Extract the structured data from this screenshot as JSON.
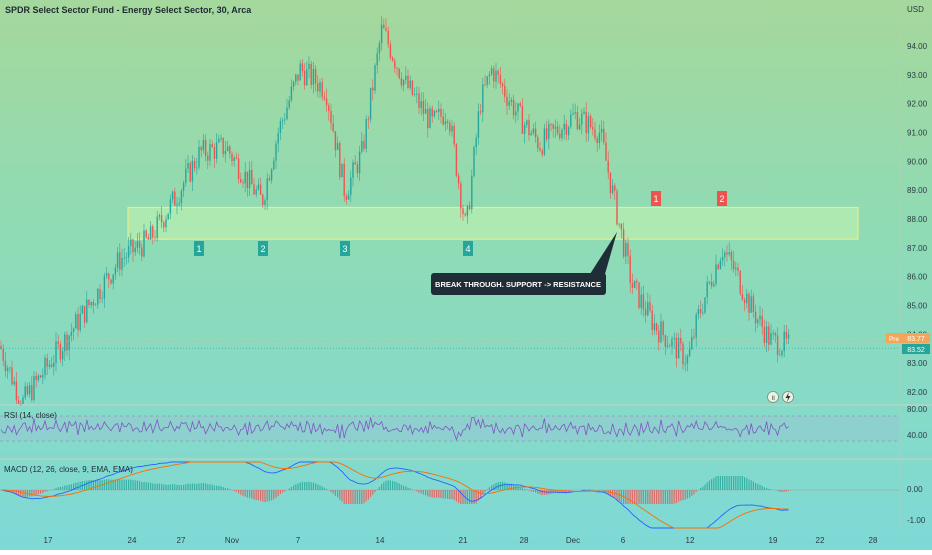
{
  "window": {
    "title": "SPDR Select Sector Fund - Energy Select Sector, 30, Arca",
    "currency": "USD"
  },
  "colors": {
    "up": "#26a69a",
    "down": "#ef5350",
    "zone_fill": "#b7eeb0",
    "zone_stroke": "#e7ee8a",
    "support_label": "#26a69a",
    "resistance_label": "#ef5350",
    "rsi_line": "#7e57c2",
    "macd_line": "#2962ff",
    "signal_line": "#ff6d00"
  },
  "annotations": {
    "support_labels": [
      "1",
      "2",
      "3",
      "4"
    ],
    "resistance_labels": [
      "1",
      "2"
    ],
    "callout": "BREAK THROUGH. SUPPORT -> RESISTANCE"
  },
  "price_badges": {
    "last": "83.77",
    "last_prefix": "Pre",
    "prev": "83.52"
  },
  "icons": [
    "pause-icon",
    "lightning-icon"
  ],
  "panes": {
    "rsi_label": "RSI (14, close)",
    "macd_label": "MACD (12, 26, close, 9, EMA, EMA)"
  },
  "chart_data": {
    "type": "candlestick",
    "title": "SPDR Select Sector Fund - Energy Select Sector, 30, Arca",
    "x_ticks": [
      "17",
      "24",
      "27",
      "Nov",
      "7",
      "14",
      "21",
      "28",
      "Dec",
      "6",
      "12",
      "19",
      "22",
      "28"
    ],
    "y_ticks": [
      "94.00",
      "93.00",
      "92.00",
      "91.00",
      "90.00",
      "89.00",
      "88.00",
      "87.00",
      "86.00",
      "85.00",
      "84.00",
      "83.00",
      "82.00"
    ],
    "ylim": [
      81.5,
      94.8
    ],
    "rsi_ticks": [
      "80.00",
      "40.00"
    ],
    "macd_ticks": [
      "0.00",
      "-1.00"
    ],
    "support_resistance_zone": [
      87.3,
      88.4
    ],
    "trend_points": [
      [
        "17",
        83.6
      ],
      [
        "19",
        81.6
      ],
      [
        "23",
        86.6
      ],
      [
        "24",
        87.3
      ],
      [
        "27",
        88.9
      ],
      [
        "29",
        90.3
      ],
      [
        "31",
        90.5
      ],
      [
        "Nov 2",
        88.6
      ],
      [
        "Nov 4",
        91.0
      ],
      [
        "Nov 6",
        93.2
      ],
      [
        "Nov 8",
        92.5
      ],
      [
        "Nov 10",
        88.9
      ],
      [
        "Nov 11",
        90.3
      ],
      [
        "Nov 14",
        94.6
      ],
      [
        "Nov 16",
        92.7
      ],
      [
        "Nov 18",
        91.3
      ],
      [
        "Nov 20",
        91.8
      ],
      [
        "Nov 21",
        87.6
      ],
      [
        "Nov 23",
        92.0
      ],
      [
        "Nov 25",
        93.2
      ],
      [
        "Nov 28",
        91.5
      ],
      [
        "Nov 30",
        90.6
      ],
      [
        "Dec 2",
        91.6
      ],
      [
        "Dec 4",
        91.0
      ],
      [
        "Dec 5",
        88.2
      ],
      [
        "Dec 7",
        85.7
      ],
      [
        "Dec 9",
        84.3
      ],
      [
        "Dec 12",
        83.1
      ],
      [
        "Dec 13",
        84.6
      ],
      [
        "Dec 14",
        87.0
      ],
      [
        "Dec 15",
        86.2
      ],
      [
        "Dec 16",
        85.0
      ],
      [
        "Dec 19",
        83.8
      ],
      [
        "Dec 20",
        83.6
      ]
    ]
  }
}
